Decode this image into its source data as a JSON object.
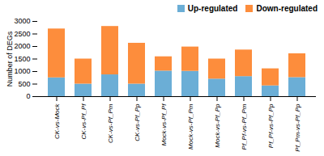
{
  "chart_data": {
    "type": "bar",
    "stacked": true,
    "categories": [
      "CK-vs-Mock",
      "CK-vs-Pf_Pf",
      "CK-vs-Pf_Pm",
      "CK-vs-Pf_Pp",
      "Mock-vs-Pf_Pf",
      "Mock-vs-Pf_Pm",
      "Mock-vs-Pf_Pp",
      "Pf_Pf-vs-Pf_Pm",
      "Pf_Pf-vs-Pf_Pp",
      "Pf_Pm-vs-Pf_Pp"
    ],
    "series": [
      {
        "name": "Up-regulated",
        "color": "#6baed6",
        "values": [
          750,
          500,
          870,
          500,
          1020,
          1010,
          700,
          800,
          430,
          760
        ]
      },
      {
        "name": "Down-regulated",
        "color": "#fd8d3c",
        "values": [
          1950,
          1000,
          1930,
          1630,
          570,
          970,
          800,
          1060,
          680,
          950
        ]
      }
    ],
    "ylabel": "Number of DEGs",
    "ylim": [
      0,
      3000
    ],
    "yticks": [
      0,
      500,
      1000,
      1500,
      2000,
      2500,
      3000
    ],
    "legend": "upper right",
    "grid": false
  }
}
